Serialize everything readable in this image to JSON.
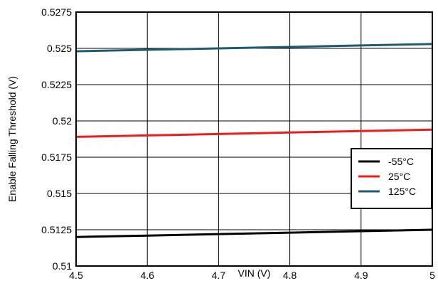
{
  "chart_data": {
    "type": "line",
    "xlabel": "VIN (V)",
    "ylabel": "Enable Falling Threshold (V)",
    "xlim": [
      4.5,
      5
    ],
    "ylim": [
      0.51,
      0.5275
    ],
    "x_ticks": [
      "4.5",
      "4.6",
      "4.7",
      "4.8",
      "4.9",
      "5"
    ],
    "y_ticks": [
      "0.51",
      "0.5125",
      "0.515",
      "0.5175",
      "0.52",
      "0.5225",
      "0.525",
      "0.5275"
    ],
    "grid": true,
    "legend_position": "right",
    "series": [
      {
        "name": "-55°C",
        "color": "#000000",
        "x": [
          4.5,
          4.6,
          4.7,
          4.8,
          4.9,
          5.0
        ],
        "y": [
          0.512,
          0.5121,
          0.5122,
          0.5123,
          0.5124,
          0.5125
        ]
      },
      {
        "name": "25°C",
        "color": "#ee1c1c",
        "x": [
          4.5,
          4.6,
          4.7,
          4.8,
          4.9,
          5.0
        ],
        "y": [
          0.5189,
          0.519,
          0.5191,
          0.5192,
          0.5193,
          0.5194
        ]
      },
      {
        "name": "125°C",
        "color": "#1f5b70",
        "x": [
          4.5,
          4.6,
          4.7,
          4.8,
          4.9,
          5.0
        ],
        "y": [
          0.5248,
          0.5249,
          0.525,
          0.5251,
          0.5252,
          0.5253
        ]
      }
    ]
  }
}
